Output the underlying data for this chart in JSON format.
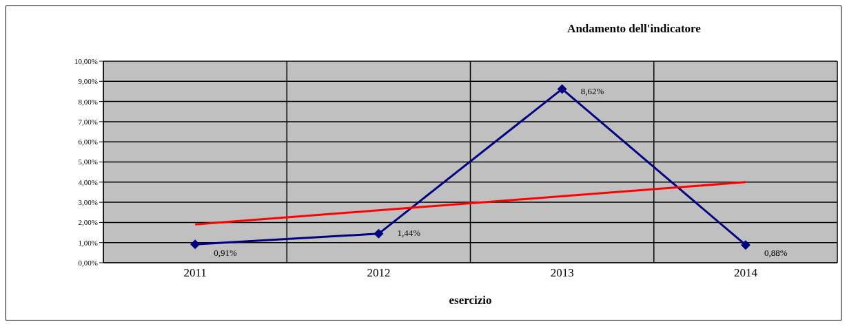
{
  "chart_data": {
    "type": "line",
    "title": "Andamento dell'indicatore",
    "xlabel": "esercizio",
    "categories": [
      "2011",
      "2012",
      "2013",
      "2014"
    ],
    "series": [
      {
        "color": "#000080",
        "values": [
          0.91,
          1.44,
          8.62,
          0.88
        ],
        "value_labels": [
          "0,91%",
          "1,44%",
          "8,62%",
          "0,88%"
        ],
        "marker": "diamond"
      },
      {
        "type": "line",
        "color": "#ff0000",
        "values": [
          1.9,
          2.6,
          3.3,
          4.0
        ],
        "marker": "none"
      }
    ],
    "ylim": [
      0,
      10
    ],
    "yticks": [
      {
        "value": 0,
        "label": "0,00%"
      },
      {
        "value": 1,
        "label": "1,00%"
      },
      {
        "value": 2,
        "label": "2,00%"
      },
      {
        "value": 3,
        "label": "3,00%"
      },
      {
        "value": 4,
        "label": "4,00%"
      },
      {
        "value": 5,
        "label": "5,00%"
      },
      {
        "value": 6,
        "label": "6,00%"
      },
      {
        "value": 7,
        "label": "7,00%"
      },
      {
        "value": 8,
        "label": "8,00%"
      },
      {
        "value": 9,
        "label": "9,00%"
      },
      {
        "value": 10,
        "label": "10,00%"
      }
    ],
    "grid": true,
    "line_style": "solid"
  }
}
